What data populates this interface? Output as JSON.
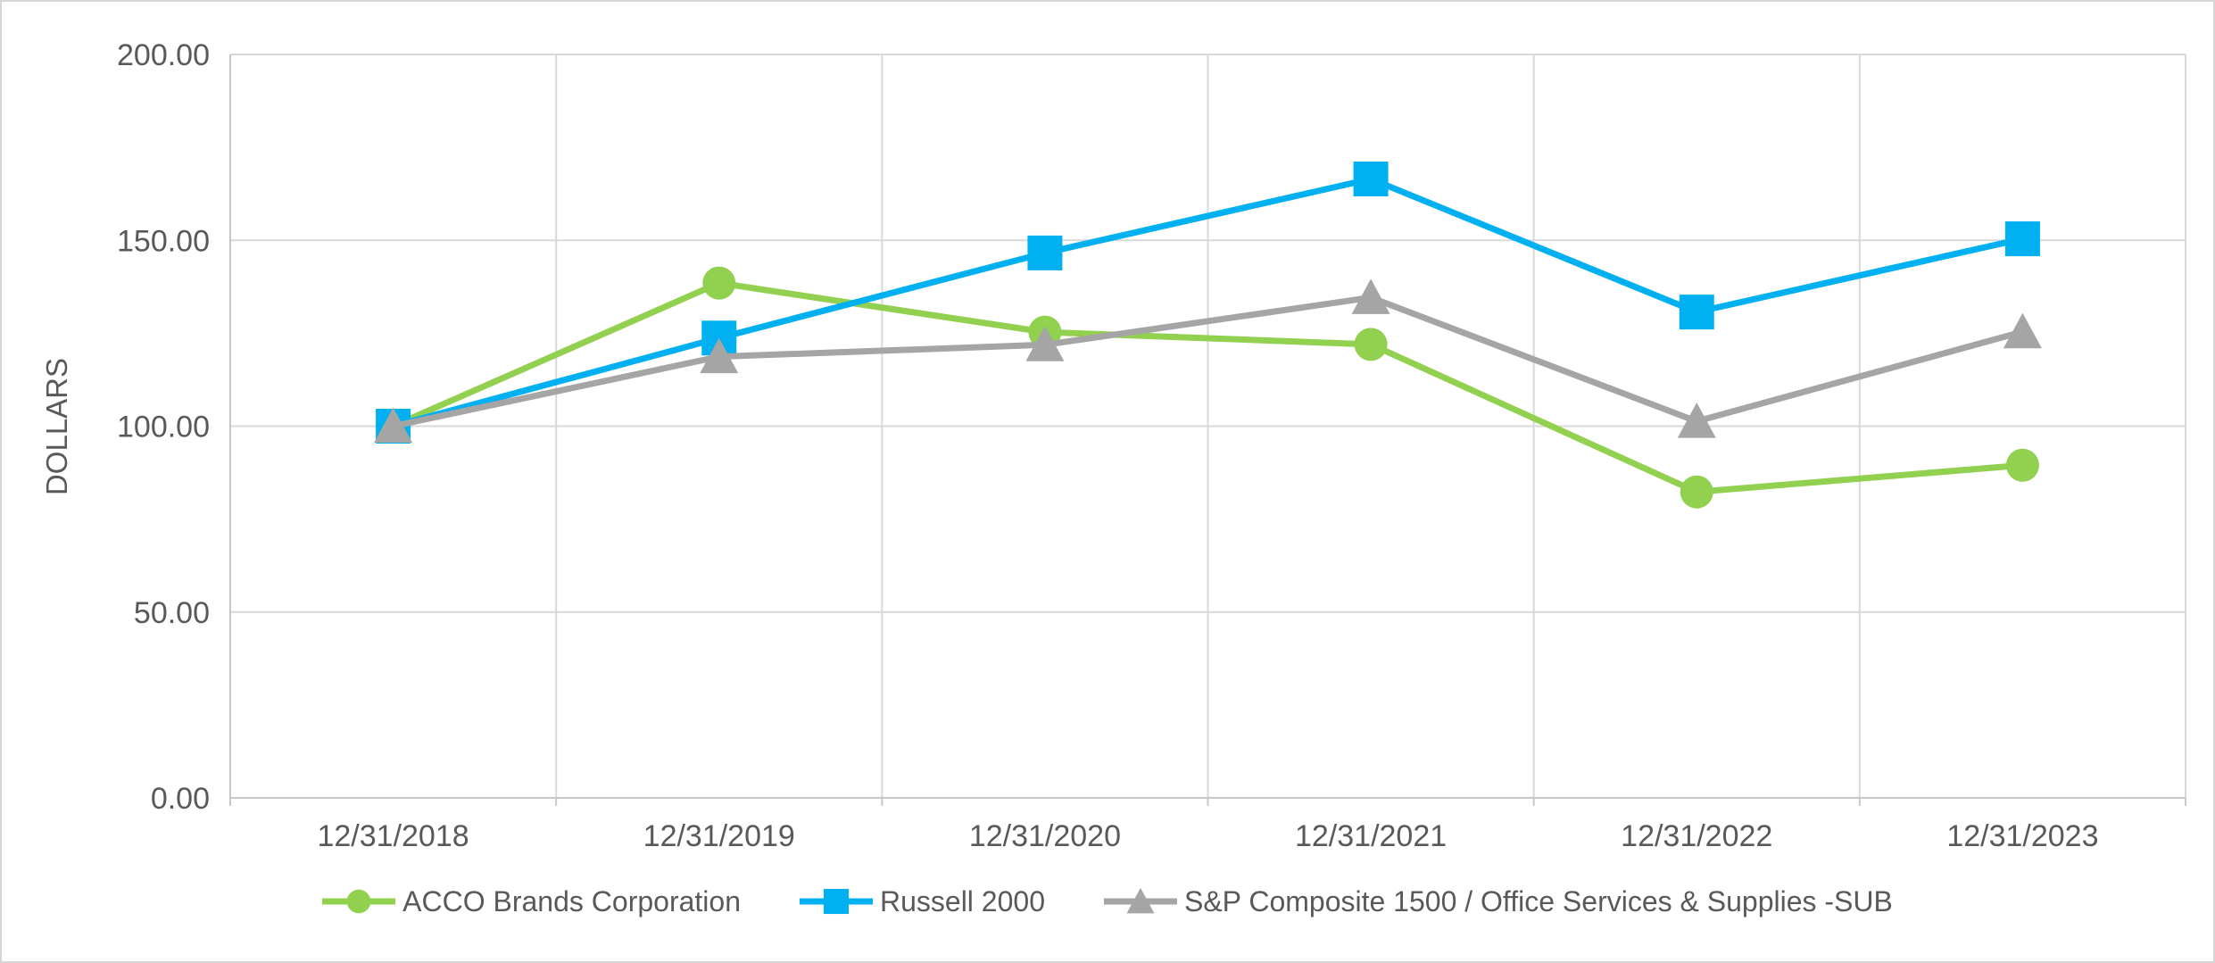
{
  "canvas": {
    "background": "#ffffff",
    "border_color": "#d6d6d6"
  },
  "styles": {
    "text_color": "#595959",
    "gridline_color": "#d9d9d9",
    "axis_line_color": "#c8c8c8",
    "series_colors": {
      "acco": "#92d050",
      "russell": "#00b0f0",
      "sp_office": "#a5a5a5"
    }
  },
  "chart_data": {
    "type": "line",
    "title": "",
    "xlabel": "",
    "ylabel": "DOLLARS",
    "grid": true,
    "legend_position": "bottom",
    "categories": [
      "12/31/2018",
      "12/31/2019",
      "12/31/2020",
      "12/31/2021",
      "12/31/2022",
      "12/31/2023"
    ],
    "y_axis": {
      "min": 0,
      "max": 200,
      "step": 50,
      "tick_labels": [
        "0.00",
        "50.00",
        "100.00",
        "150.00",
        "200.00"
      ]
    },
    "ylim": [
      0,
      200
    ],
    "series": [
      {
        "name": "ACCO Brands Corporation",
        "marker": "circle",
        "color": "#92d050",
        "values": [
          100.0,
          138.5,
          125.3,
          122.0,
          82.3,
          89.5
        ]
      },
      {
        "name": "Russell 2000",
        "marker": "square",
        "color": "#00b0f0",
        "values": [
          100.0,
          123.7,
          146.6,
          166.5,
          130.7,
          150.4
        ]
      },
      {
        "name": "S&P Composite 1500 / Office Services & Supplies -SUB",
        "marker": "triangle",
        "color": "#a5a5a5",
        "values": [
          100.0,
          118.7,
          121.9,
          134.6,
          101.3,
          125.4
        ]
      }
    ]
  }
}
